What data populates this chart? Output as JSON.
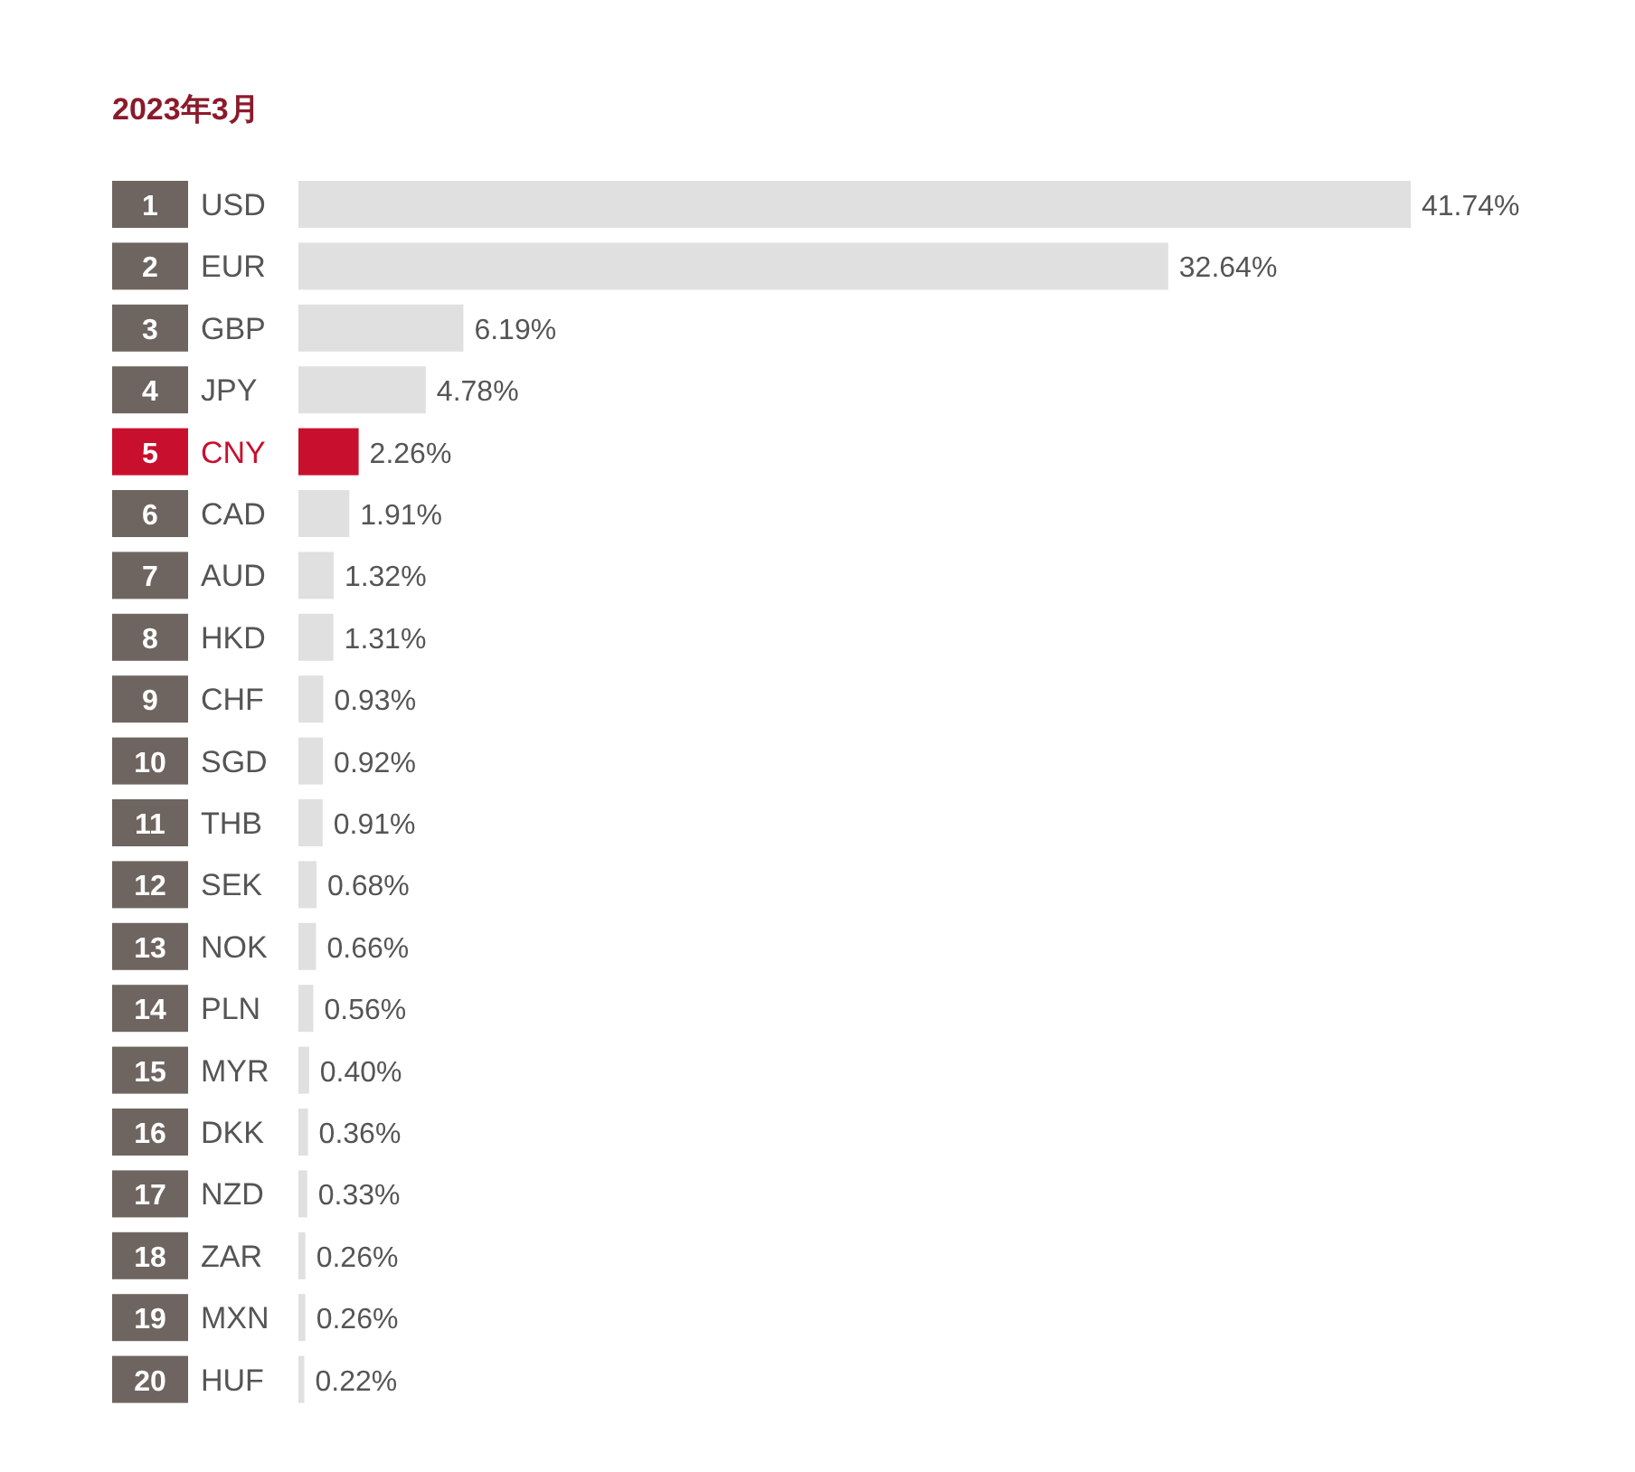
{
  "chart_data": {
    "type": "bar",
    "orientation": "horizontal",
    "title": "2023年3月",
    "categories": [
      "USD",
      "EUR",
      "GBP",
      "JPY",
      "CNY",
      "CAD",
      "AUD",
      "HKD",
      "CHF",
      "SGD",
      "THB",
      "SEK",
      "NOK",
      "PLN",
      "MYR",
      "DKK",
      "NZD",
      "ZAR",
      "MXN",
      "HUF"
    ],
    "values": [
      41.74,
      32.64,
      6.19,
      4.78,
      2.26,
      1.91,
      1.32,
      1.31,
      0.93,
      0.92,
      0.91,
      0.68,
      0.66,
      0.56,
      0.4,
      0.36,
      0.33,
      0.26,
      0.26,
      0.22
    ],
    "value_labels": [
      "41.74%",
      "32.64%",
      "6.19%",
      "4.78%",
      "2.26%",
      "1.91%",
      "1.32%",
      "1.31%",
      "0.93%",
      "0.92%",
      "0.91%",
      "0.68%",
      "0.66%",
      "0.56%",
      "0.40%",
      "0.36%",
      "0.33%",
      "0.26%",
      "0.26%",
      "0.22%"
    ],
    "colors": [
      "#e0e0e0",
      "#e0e0e0",
      "#e0e0e0",
      "#e0e0e0",
      "#c8102e",
      "#e0e0e0",
      "#e0e0e0",
      "#e0e0e0",
      "#e0e0e0",
      "#e0e0e0",
      "#e0e0e0",
      "#e0e0e0",
      "#e0e0e0",
      "#e0e0e0",
      "#e0e0e0",
      "#e0e0e0",
      "#e0e0e0",
      "#e0e0e0",
      "#e0e0e0",
      "#e0e0e0"
    ],
    "annotations": [
      "1",
      "2",
      "3",
      "4",
      "5",
      "6",
      "7",
      "8",
      "9",
      "10",
      "11",
      "12",
      "13",
      "14",
      "15",
      "16",
      "17",
      "18",
      "19",
      "20"
    ]
  }
}
